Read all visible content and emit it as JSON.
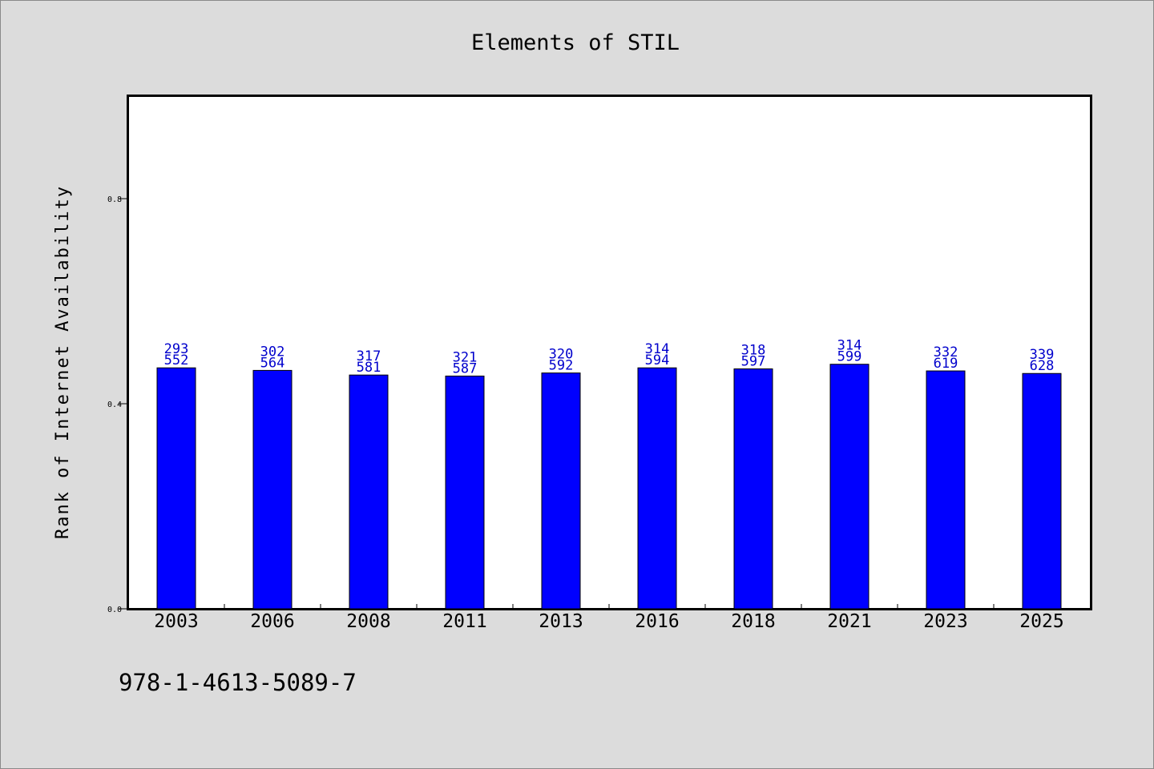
{
  "chart_data": {
    "type": "bar",
    "title": "Elements of STIL",
    "xlabel": "",
    "ylabel": "Rank of Internet Availability",
    "ylim": [
      0,
      1.0
    ],
    "yticks": [
      "0.0",
      "0.4",
      "0.8"
    ],
    "categories": [
      "2003",
      "2006",
      "2008",
      "2011",
      "2013",
      "2016",
      "2018",
      "2021",
      "2023",
      "2025"
    ],
    "values": [
      0.47,
      0.465,
      0.456,
      0.454,
      0.46,
      0.47,
      0.468,
      0.477,
      0.464,
      0.459
    ],
    "bar_label_numerators": [
      "293",
      "302",
      "317",
      "321",
      "320",
      "314",
      "318",
      "314",
      "332",
      "339"
    ],
    "bar_label_denominators": [
      "552",
      "564",
      "581",
      "587",
      "592",
      "594",
      "597",
      "599",
      "619",
      "628"
    ],
    "grid": false,
    "legend": "none"
  },
  "isbn_text": "978-1-4613-5089-7",
  "colors": {
    "background": "#dcdcdc",
    "plot_background": "#ffffff",
    "bar_fill": "#0000ff",
    "bar_label": "#0000cc",
    "axis": "#000000"
  }
}
